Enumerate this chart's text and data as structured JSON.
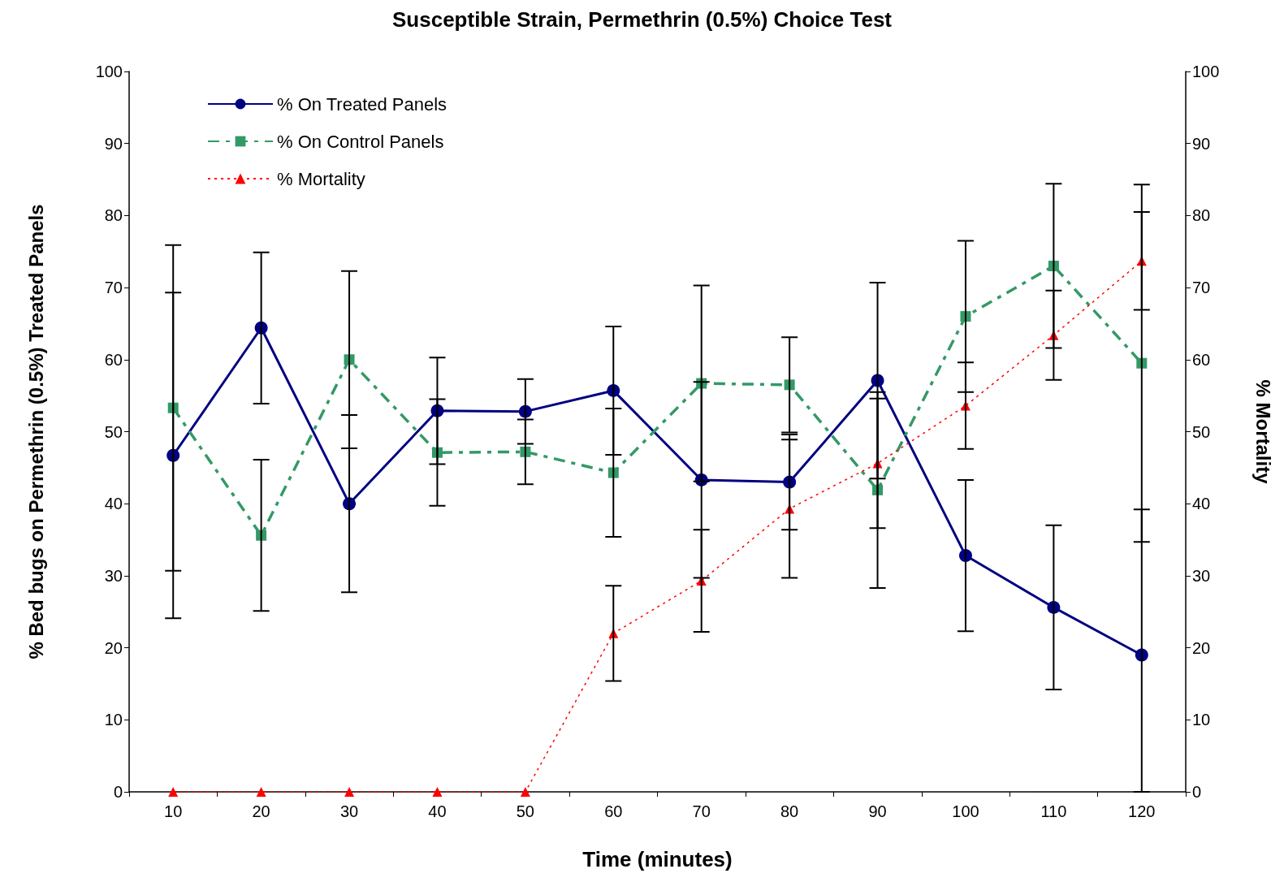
{
  "chart_data": {
    "type": "line",
    "title": "Susceptible Strain, Permethrin (0.5%) Choice Test",
    "xlabel": "Time (minutes)",
    "ylabel": "% Bed bugs on Permethrin (0.5%) Treated Panels",
    "y2label": "% Mortality",
    "categories": [
      "10",
      "20",
      "30",
      "40",
      "50",
      "60",
      "70",
      "80",
      "90",
      "100",
      "110",
      "120"
    ],
    "series": [
      {
        "name": "% On Treated Panels",
        "color": "#000080",
        "marker": "circle",
        "line_style": "solid",
        "values": [
          46.7,
          64.4,
          40,
          52.9,
          52.8,
          55.7,
          43.3,
          43.0,
          57.1,
          32.8,
          25.6,
          19.0
        ],
        "errors": [
          22.6,
          10.5,
          12.3,
          7.4,
          4.5,
          8.9,
          13.6,
          6.6,
          13.6,
          10.5,
          11.4,
          [
            0,
            39.2
          ]
        ]
      },
      {
        "name": "% On Control Panels",
        "color": "#339966",
        "marker": "square",
        "line_style": "dashed",
        "values": [
          53.3,
          35.6,
          60,
          47.1,
          47.2,
          44.3,
          56.7,
          56.5,
          41.9,
          66.0,
          73.0,
          59.5
        ],
        "errors": [
          22.6,
          10.5,
          12.3,
          7.4,
          4.5,
          8.9,
          13.6,
          6.6,
          13.6,
          10.5,
          11.4,
          24.8
        ]
      },
      {
        "name": "% Mortality",
        "color": "#ff0000",
        "marker": "triangle",
        "line_style": "dotted",
        "axis": "y2",
        "values": [
          0,
          0,
          0,
          0,
          0,
          22,
          29.3,
          39.3,
          45.6,
          53.6,
          63.4,
          73.7
        ],
        "errors": [
          null,
          null,
          null,
          null,
          null,
          6.6,
          7.1,
          9.6,
          9.0,
          6.0,
          6.2,
          6.8
        ]
      }
    ],
    "ylim": [
      0,
      100
    ],
    "yticks": [
      0,
      10,
      20,
      30,
      40,
      50,
      60,
      70,
      80,
      90,
      100
    ],
    "y2lim": [
      0,
      100
    ],
    "y2ticks": [
      0,
      10,
      20,
      30,
      40,
      50,
      60,
      70,
      80,
      90,
      100
    ],
    "grid": false,
    "legend": "top left"
  }
}
